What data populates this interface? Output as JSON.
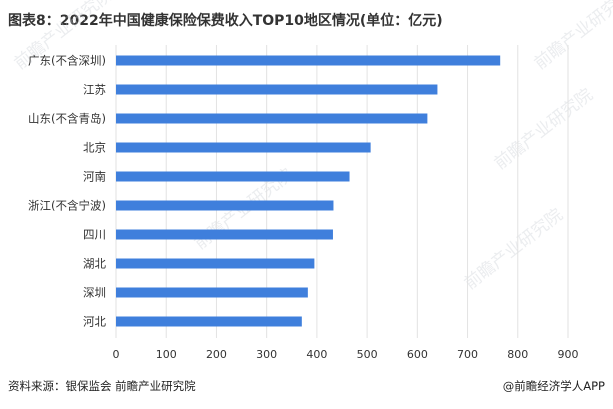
{
  "title": "图表8：2022年中国健康保险保费收入TOP10地区情况(单位：亿元)",
  "source": "资料来源：银保监会 前瞻产业研究院",
  "brand": "@前瞻经济学人APP",
  "watermark_text": "前瞻产业研究院",
  "colors": {
    "bar": "#3f7fdc",
    "grid": "#e2e2e2",
    "axis_text": "#333333",
    "title": "#333333"
  },
  "chart_data": {
    "type": "bar",
    "orientation": "horizontal",
    "categories": [
      "广东(不含深圳)",
      "江苏",
      "山东(不含青岛)",
      "北京",
      "河南",
      "浙江(不含宁波)",
      "四川",
      "湖北",
      "深圳",
      "河北"
    ],
    "values": [
      765,
      640,
      620,
      507,
      465,
      433,
      432,
      395,
      382,
      370
    ],
    "xlim": [
      0,
      900
    ],
    "xticks": [
      0,
      100,
      200,
      300,
      400,
      500,
      600,
      700,
      800,
      900
    ],
    "grid": "vertical",
    "legend": "none"
  }
}
